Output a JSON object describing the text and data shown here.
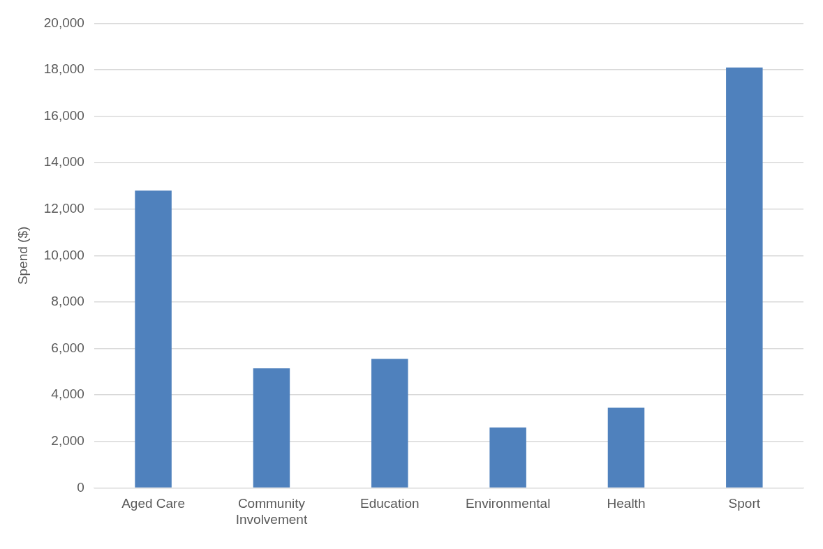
{
  "chart_data": {
    "type": "bar",
    "ylabel": "Spend ($)",
    "categories": [
      "Aged Care",
      "Community Involvement",
      "Education",
      "Environmental",
      "Health",
      "Sport"
    ],
    "values": [
      12800,
      5150,
      5550,
      2600,
      3450,
      18100
    ],
    "color": "#4f81bd",
    "ylim": [
      0,
      20000
    ],
    "yticks": [
      {
        "value": 0,
        "label": "0"
      },
      {
        "value": 2000,
        "label": "2,000"
      },
      {
        "value": 4000,
        "label": "4,000"
      },
      {
        "value": 6000,
        "label": "6,000"
      },
      {
        "value": 8000,
        "label": "8,000"
      },
      {
        "value": 10000,
        "label": "10,000"
      },
      {
        "value": 12000,
        "label": "12,000"
      },
      {
        "value": 14000,
        "label": "14,000"
      },
      {
        "value": 16000,
        "label": "16,000"
      },
      {
        "value": 18000,
        "label": "18,000"
      },
      {
        "value": 20000,
        "label": "20,000"
      }
    ],
    "grid": "y",
    "legend": false
  }
}
